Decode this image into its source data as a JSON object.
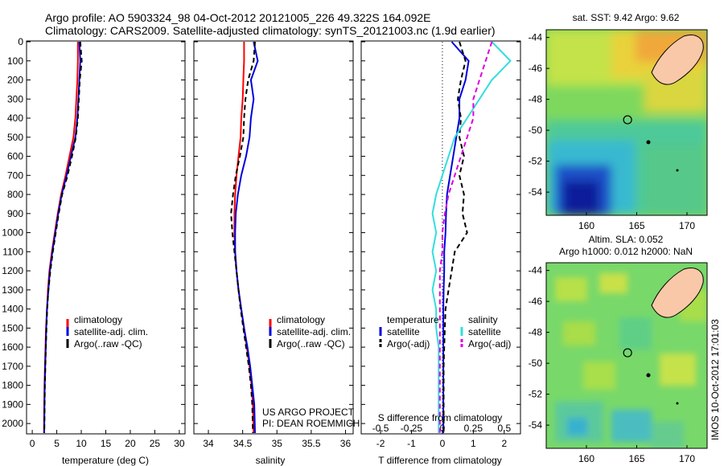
{
  "header": {
    "line1": "Argo profile: AO 5903324_98 04-Oct-2012 20121005_226 49.322S 164.092E",
    "line2": "Climatology: CARS2009. Satellite-adjusted climatology: synTS_20121003.nc (1.9d earlier)"
  },
  "colors": {
    "climatology": "#ff0000",
    "satellite": "#0000dd",
    "argo": "#000000",
    "sal_satellite": "#33dddd",
    "sal_argo": "#dd00dd"
  },
  "chart_data": [
    {
      "type": "line",
      "xlabel": "temperature (deg C)",
      "xlim": [
        -1,
        31
      ],
      "xticks": [
        "0",
        "5",
        "10",
        "15",
        "20",
        "25",
        "30"
      ],
      "ylim": [
        0,
        2050
      ],
      "yticks": [
        "0",
        "100",
        "200",
        "300",
        "400",
        "500",
        "600",
        "700",
        "800",
        "900",
        "1000",
        "1100",
        "1200",
        "1300",
        "1400",
        "1500",
        "1600",
        "1700",
        "1800",
        "1900",
        "2000"
      ],
      "legend": [
        "climatology",
        "satellite-adj. clim.",
        "Argo(..raw -QC)"
      ],
      "series": [
        {
          "name": "climatology",
          "style": "solid",
          "color": "#ff0000",
          "x": [
            9.3,
            9.3,
            9.2,
            9.0,
            8.8,
            8.4,
            7.6,
            6.8,
            5.9,
            5.2,
            4.6,
            4.0,
            3.5,
            3.2,
            3.0,
            2.8,
            2.7,
            2.6,
            2.5,
            2.45,
            2.4
          ],
          "y": [
            0,
            100,
            200,
            300,
            400,
            500,
            600,
            700,
            800,
            900,
            1000,
            1100,
            1200,
            1300,
            1400,
            1500,
            1600,
            1700,
            1800,
            1900,
            2050
          ]
        },
        {
          "name": "satellite-adj. clim.",
          "style": "solid",
          "color": "#0000dd",
          "x": [
            9.6,
            9.8,
            9.6,
            9.4,
            9.2,
            8.8,
            7.9,
            7.0,
            6.0,
            5.3,
            4.7,
            4.1,
            3.6,
            3.3,
            3.0,
            2.85,
            2.75,
            2.65,
            2.55,
            2.5,
            2.45
          ],
          "y": [
            0,
            100,
            200,
            300,
            400,
            500,
            600,
            700,
            800,
            900,
            1000,
            1100,
            1200,
            1300,
            1400,
            1500,
            1600,
            1700,
            1800,
            1900,
            2050
          ]
        },
        {
          "name": "Argo(..raw -QC)",
          "style": "dashed",
          "color": "#000000",
          "x": [
            9.8,
            10.1,
            9.7,
            9.5,
            9.3,
            8.9,
            8.1,
            7.2,
            6.1,
            5.4,
            4.8,
            4.2,
            3.7,
            3.3,
            3.05,
            2.9,
            2.78,
            2.68,
            2.58,
            2.52,
            2.47
          ],
          "y": [
            0,
            100,
            200,
            300,
            400,
            500,
            600,
            700,
            800,
            900,
            1000,
            1100,
            1200,
            1300,
            1400,
            1500,
            1600,
            1700,
            1800,
            1900,
            2050
          ]
        }
      ]
    },
    {
      "type": "line",
      "xlabel": "salinity",
      "xlim": [
        33.8,
        36.1
      ],
      "xticks": [
        "34",
        "34.5",
        "35",
        "35.5",
        "36"
      ],
      "ylim": [
        0,
        2050
      ],
      "legend": [
        "climatology",
        "satellite-adj. clim.",
        "Argo(..raw -QC)"
      ],
      "annotations": [
        "US ARGO PROJECT",
        "PI: DEAN ROEMMICH"
      ],
      "series": [
        {
          "name": "climatology",
          "style": "solid",
          "color": "#ff0000",
          "x": [
            34.52,
            34.52,
            34.51,
            34.5,
            34.48,
            34.47,
            34.44,
            34.41,
            34.39,
            34.38,
            34.38,
            34.39,
            34.41,
            34.44,
            34.48,
            34.52,
            34.56,
            34.6,
            34.63,
            34.65,
            34.66
          ],
          "y": [
            0,
            100,
            200,
            300,
            400,
            500,
            600,
            700,
            800,
            900,
            1000,
            1100,
            1200,
            1300,
            1400,
            1500,
            1600,
            1700,
            1800,
            1900,
            2050
          ]
        },
        {
          "name": "satellite-adj. clim.",
          "style": "solid",
          "color": "#0000dd",
          "x": [
            34.66,
            34.72,
            34.62,
            34.66,
            34.62,
            34.6,
            34.55,
            34.48,
            34.43,
            34.4,
            34.39,
            34.39,
            34.41,
            34.44,
            34.48,
            34.52,
            34.57,
            34.61,
            34.64,
            34.67,
            34.68
          ],
          "y": [
            0,
            100,
            200,
            300,
            400,
            500,
            600,
            700,
            800,
            900,
            1000,
            1100,
            1200,
            1300,
            1400,
            1500,
            1600,
            1700,
            1800,
            1900,
            2050
          ]
        },
        {
          "name": "Argo(..raw -QC)",
          "style": "dashed",
          "color": "#000000",
          "x": [
            34.68,
            34.66,
            34.58,
            34.54,
            34.52,
            34.51,
            34.46,
            34.4,
            34.36,
            34.33,
            34.35,
            34.38,
            34.41,
            34.44,
            34.47,
            34.51,
            34.55,
            34.59,
            34.62,
            34.64,
            34.65
          ],
          "y": [
            0,
            100,
            200,
            300,
            400,
            500,
            600,
            700,
            800,
            900,
            1000,
            1100,
            1200,
            1300,
            1400,
            1500,
            1600,
            1700,
            1800,
            1900,
            2050
          ]
        }
      ]
    },
    {
      "type": "line",
      "xlabel": "T difference from climatology",
      "xlabel_top": "S difference from climatology",
      "xlim": [
        -2.6,
        2.5
      ],
      "xticks": [
        "-2",
        "-1",
        "0",
        "1",
        "2"
      ],
      "xticks_top": [
        "-0.5",
        "-0.25",
        "0",
        "0.25",
        "0.5"
      ],
      "ylim": [
        0,
        2050
      ],
      "legend_left_title": "temperature",
      "legend_right_title": "salinity",
      "legend": [
        "satellite",
        "Argo(-adj)",
        "satellite",
        "Argo(-adj)"
      ],
      "series": [
        {
          "name": "satellite",
          "group": "temperature",
          "style": "solid",
          "color": "#0000dd",
          "x": [
            0.3,
            0.85,
            0.75,
            0.55,
            0.55,
            0.45,
            0.35,
            0.25,
            0.15,
            0.12,
            0.1,
            0.06,
            0.06,
            0.04,
            0.03,
            0.03,
            0.03,
            0.03,
            0.03,
            0.03,
            0.03
          ],
          "y": [
            0,
            100,
            200,
            300,
            400,
            500,
            600,
            700,
            800,
            900,
            1000,
            1100,
            1200,
            1300,
            1400,
            1500,
            1600,
            1700,
            1800,
            1900,
            2050
          ]
        },
        {
          "name": "Argo(-adj)",
          "group": "temperature",
          "style": "dashed",
          "color": "#000000",
          "x": [
            0.55,
            0.75,
            0.6,
            0.5,
            0.6,
            0.55,
            0.7,
            0.55,
            0.7,
            0.65,
            0.8,
            0.4,
            0.3,
            0.2,
            0.1,
            0.08,
            0.06,
            0.04,
            0.04,
            0.04,
            0.04
          ],
          "y": [
            0,
            100,
            200,
            300,
            400,
            500,
            600,
            700,
            800,
            900,
            1000,
            1100,
            1200,
            1300,
            1400,
            1500,
            1600,
            1700,
            1800,
            1900,
            2050
          ]
        },
        {
          "name": "satellite",
          "group": "salinity",
          "style": "solid",
          "color": "#33dddd",
          "x": [
            0.4,
            0.55,
            0.4,
            0.3,
            0.2,
            0.1,
            0.05,
            0.0,
            -0.05,
            -0.08,
            -0.05,
            -0.08,
            -0.05,
            -0.08,
            -0.05,
            -0.05,
            -0.03,
            -0.03,
            -0.03,
            -0.03,
            -0.03
          ],
          "y": [
            0,
            100,
            200,
            300,
            400,
            500,
            600,
            700,
            800,
            900,
            1000,
            1100,
            1200,
            1300,
            1400,
            1500,
            1600,
            1700,
            1800,
            1900,
            2050
          ]
        },
        {
          "name": "Argo(-adj)",
          "group": "salinity",
          "style": "dashed",
          "color": "#dd00dd",
          "x": [
            0.4,
            0.35,
            0.3,
            0.25,
            0.25,
            0.2,
            0.15,
            0.1,
            0.05,
            0.02,
            0.0,
            0.0,
            -0.02,
            -0.02,
            -0.02,
            -0.02,
            -0.02,
            -0.02,
            -0.02,
            -0.02,
            -0.02
          ],
          "y": [
            0,
            100,
            200,
            300,
            400,
            500,
            600,
            700,
            800,
            900,
            1000,
            1100,
            1200,
            1300,
            1400,
            1500,
            1600,
            1700,
            1800,
            1900,
            2050
          ]
        }
      ]
    },
    {
      "type": "heatmap",
      "title": "sat. SST: 9.42 Argo: 9.62",
      "xticks": [
        "160",
        "165",
        "170"
      ],
      "yticks": [
        "-44",
        "-46",
        "-48",
        "-50",
        "-52",
        "-54"
      ],
      "xlim": [
        156,
        172
      ],
      "ylim": [
        -55.5,
        -43.5
      ],
      "marker": {
        "lon": 164.092,
        "lat": -49.322
      }
    },
    {
      "type": "heatmap",
      "title_line1": "Altim. SLA: 0.052",
      "title_line2": "Argo h1000: 0.012 h2000: NaN",
      "xticks": [
        "160",
        "165",
        "170"
      ],
      "yticks": [
        "-44",
        "-46",
        "-48",
        "-50",
        "-52",
        "-54"
      ],
      "xlim": [
        156,
        172
      ],
      "ylim": [
        -55.5,
        -43.5
      ],
      "marker": {
        "lon": 164.092,
        "lat": -49.322
      }
    }
  ],
  "watermark": "IMOS 10-Oct-2012 17:01:03"
}
